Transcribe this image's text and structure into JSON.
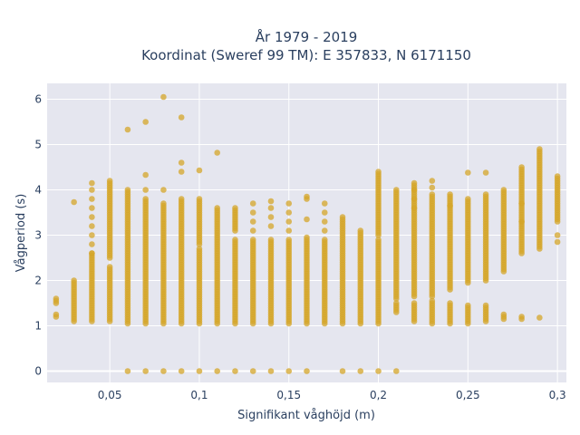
{
  "chart_data": {
    "type": "scatter",
    "title": "År 1979 - 2019",
    "subtitle": "Koordinat (Sweref 99 TM): E 357833, N 6171150",
    "xlabel": "Signifikant våghöjd (m)",
    "ylabel": "Vågperiod (s)",
    "xlim": [
      0.015,
      0.305
    ],
    "ylim": [
      -0.25,
      6.35
    ],
    "x_ticks": [
      0.05,
      0.1,
      0.15,
      0.2,
      0.25,
      0.3
    ],
    "x_tick_labels": [
      "0,05",
      "0,1",
      "0,15",
      "0,2",
      "0,25",
      "0,3"
    ],
    "y_ticks": [
      0,
      1,
      2,
      3,
      4,
      5,
      6
    ],
    "y_tick_labels": [
      "0",
      "1",
      "2",
      "3",
      "4",
      "5",
      "6"
    ],
    "grid": true,
    "legend": false,
    "marker_color": "#d4a52a",
    "plot_bg": "#e5e6ef",
    "columns": [
      {
        "x": 0.02,
        "bands": [
          [
            1.2,
            1.25
          ],
          [
            1.5,
            1.6
          ]
        ],
        "points": []
      },
      {
        "x": 0.03,
        "bands": [
          [
            1.1,
            2.0
          ]
        ],
        "points": [
          3.73
        ]
      },
      {
        "x": 0.04,
        "bands": [
          [
            1.1,
            2.6
          ]
        ],
        "points": [
          2.6,
          2.8,
          3.0,
          3.2,
          3.4,
          3.6,
          3.8,
          4.0,
          4.15
        ]
      },
      {
        "x": 0.05,
        "bands": [
          [
            1.1,
            2.3
          ],
          [
            2.5,
            4.2
          ]
        ],
        "points": []
      },
      {
        "x": 0.06,
        "bands": [
          [
            1.05,
            4.0
          ]
        ],
        "points": [
          0.0,
          5.33
        ]
      },
      {
        "x": 0.07,
        "bands": [
          [
            1.05,
            3.8
          ]
        ],
        "points": [
          0.0,
          4.0,
          4.33,
          5.5
        ]
      },
      {
        "x": 0.08,
        "bands": [
          [
            1.05,
            3.7
          ]
        ],
        "points": [
          0.0,
          4.0,
          6.05
        ]
      },
      {
        "x": 0.09,
        "bands": [
          [
            1.05,
            3.8
          ]
        ],
        "points": [
          0.0,
          4.4,
          4.6,
          5.6
        ]
      },
      {
        "x": 0.1,
        "bands": [
          [
            1.05,
            2.7
          ],
          [
            2.8,
            3.8
          ]
        ],
        "points": [
          0.0,
          4.43
        ]
      },
      {
        "x": 0.11,
        "bands": [
          [
            1.05,
            3.6
          ]
        ],
        "points": [
          0.0,
          4.82
        ]
      },
      {
        "x": 0.12,
        "bands": [
          [
            1.05,
            2.9
          ],
          [
            3.1,
            3.6
          ]
        ],
        "points": [
          0.0
        ]
      },
      {
        "x": 0.13,
        "bands": [
          [
            1.05,
            2.9
          ]
        ],
        "points": [
          0.0,
          3.1,
          3.3,
          3.5,
          3.7
        ]
      },
      {
        "x": 0.14,
        "bands": [
          [
            1.05,
            2.9
          ]
        ],
        "points": [
          0.0,
          3.2,
          3.4,
          3.6,
          3.75
        ]
      },
      {
        "x": 0.15,
        "bands": [
          [
            1.05,
            2.9
          ]
        ],
        "points": [
          0.0,
          3.1,
          3.3,
          3.5,
          3.7
        ]
      },
      {
        "x": 0.16,
        "bands": [
          [
            1.05,
            2.95
          ]
        ],
        "points": [
          0.0,
          3.35,
          3.8,
          3.85
        ]
      },
      {
        "x": 0.17,
        "bands": [
          [
            1.05,
            2.9
          ]
        ],
        "points": [
          3.1,
          3.3,
          3.5,
          3.7
        ]
      },
      {
        "x": 0.18,
        "bands": [
          [
            1.05,
            3.4
          ]
        ],
        "points": [
          0.0
        ]
      },
      {
        "x": 0.19,
        "bands": [
          [
            1.05,
            3.1
          ]
        ],
        "points": [
          0.0
        ]
      },
      {
        "x": 0.2,
        "bands": [
          [
            1.05,
            2.9
          ],
          [
            3.0,
            4.4
          ]
        ],
        "points": [
          0.0
        ]
      },
      {
        "x": 0.21,
        "bands": [
          [
            1.3,
            1.5
          ],
          [
            1.6,
            4.0
          ]
        ],
        "points": [
          0.0
        ]
      },
      {
        "x": 0.22,
        "bands": [
          [
            1.1,
            1.5
          ],
          [
            1.65,
            4.1
          ]
        ],
        "points": [
          3.6,
          3.8,
          4.0,
          4.15
        ]
      },
      {
        "x": 0.23,
        "bands": [
          [
            1.05,
            1.55
          ],
          [
            1.65,
            3.9
          ]
        ],
        "points": [
          4.05,
          4.2
        ]
      },
      {
        "x": 0.24,
        "bands": [
          [
            1.05,
            1.5
          ],
          [
            1.8,
            3.9
          ]
        ],
        "points": [
          3.65
        ]
      },
      {
        "x": 0.25,
        "bands": [
          [
            1.05,
            1.45
          ],
          [
            1.95,
            3.8
          ]
        ],
        "points": [
          4.38
        ]
      },
      {
        "x": 0.26,
        "bands": [
          [
            1.1,
            1.45
          ],
          [
            2.0,
            3.9
          ]
        ],
        "points": [
          4.38
        ]
      },
      {
        "x": 0.27,
        "bands": [
          [
            1.15,
            1.25
          ],
          [
            2.2,
            4.0
          ]
        ],
        "points": []
      },
      {
        "x": 0.28,
        "bands": [
          [
            1.15,
            1.2
          ],
          [
            2.6,
            4.5
          ]
        ],
        "points": [
          3.3,
          3.7
        ]
      },
      {
        "x": 0.29,
        "bands": [
          [
            2.7,
            4.9
          ]
        ],
        "points": [
          1.18
        ]
      },
      {
        "x": 0.3,
        "bands": [
          [
            3.3,
            4.3
          ]
        ],
        "points": [
          2.85,
          3.0
        ]
      }
    ]
  }
}
